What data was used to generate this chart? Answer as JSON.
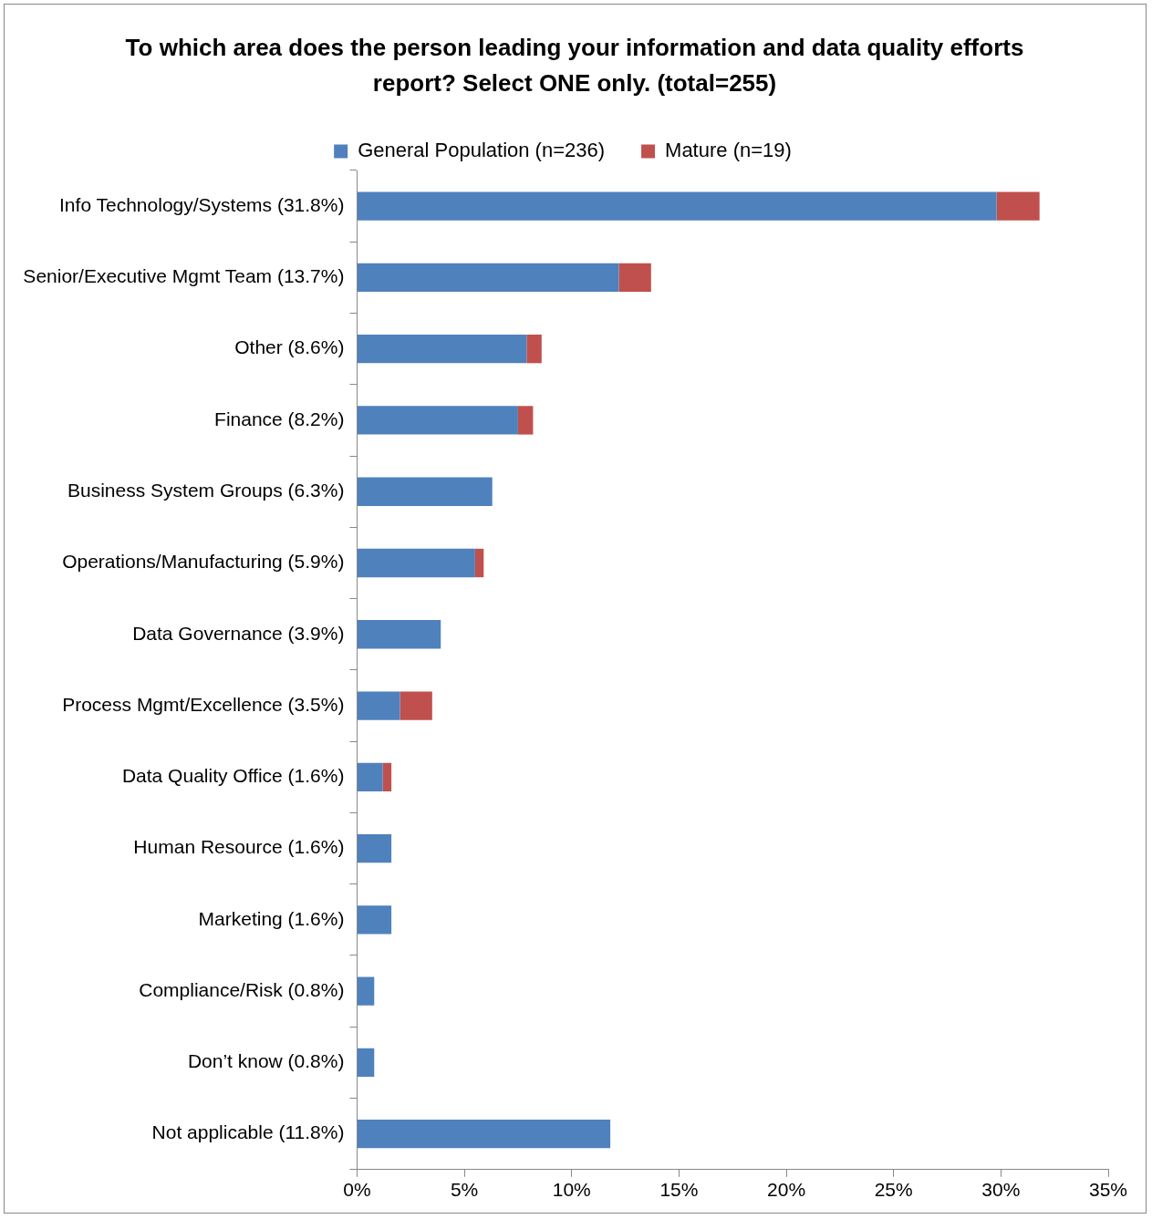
{
  "chart_data": {
    "type": "bar",
    "orientation": "horizontal",
    "stacked": true,
    "title": "To which area does the person leading your information and data quality efforts report?  Select ONE only.  (total=255)",
    "categories": [
      "Info Technology/Systems (31.8%)",
      "Senior/Executive Mgmt Team (13.7%)",
      "Other (8.6%)",
      "Finance (8.2%)",
      "Business System Groups (6.3%)",
      "Operations/Manufacturing (5.9%)",
      "Data Governance (3.9%)",
      "Process Mgmt/Excellence (3.5%)",
      "Data Quality Office (1.6%)",
      "Human Resource (1.6%)",
      "Marketing (1.6%)",
      "Compliance/Risk (0.8%)",
      "Don’t know (0.8%)",
      "Not applicable (11.8%)"
    ],
    "series": [
      {
        "name": "General Population (n=236)",
        "color": "#4f81bd",
        "values": [
          29.8,
          12.2,
          7.9,
          7.5,
          6.3,
          5.5,
          3.9,
          2.0,
          1.2,
          1.6,
          1.6,
          0.8,
          0.8,
          11.8
        ]
      },
      {
        "name": "Mature (n=19)",
        "color": "#c0504d",
        "values": [
          2.0,
          1.5,
          0.7,
          0.7,
          null,
          0.4,
          null,
          1.5,
          0.4,
          null,
          null,
          null,
          null,
          null
        ]
      }
    ],
    "xlim": [
      0,
      35
    ],
    "xticks": [
      {
        "value": 0,
        "label": "0%"
      },
      {
        "value": 5,
        "label": "5%"
      },
      {
        "value": 10,
        "label": "10%"
      },
      {
        "value": 15,
        "label": "15%"
      },
      {
        "value": 20,
        "label": "20%"
      },
      {
        "value": 25,
        "label": "25%"
      },
      {
        "value": 30,
        "label": "30%"
      },
      {
        "value": 35,
        "label": "35%"
      }
    ],
    "legend": "top",
    "grid": false
  }
}
